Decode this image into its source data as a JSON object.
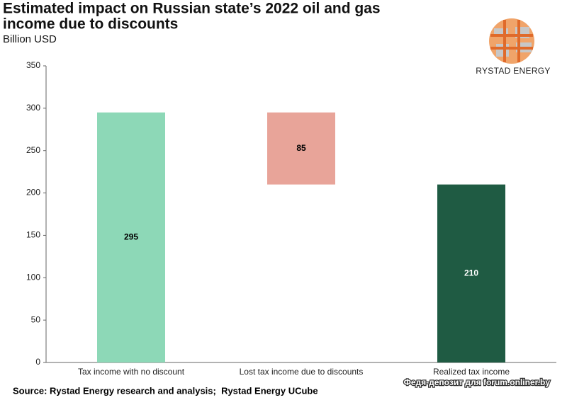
{
  "chart_data": {
    "type": "waterfall",
    "title": [
      "Estimated impact on Russian state’s 2022 oil and gas",
      "income due to discounts"
    ],
    "subtitle": "Billion USD",
    "categories": [
      "Tax income with no discount",
      "Lost tax income due to discounts",
      "Realized tax income"
    ],
    "values": [
      295,
      85,
      210
    ],
    "measures": [
      "absolute",
      "decrease",
      "total"
    ],
    "colors": [
      "#8dd8b7",
      "#e8a499",
      "#1f5b43"
    ],
    "label_colors": [
      "#000000",
      "#000000",
      "#ffffff"
    ],
    "ylim": [
      0,
      350
    ],
    "yticks": [
      0,
      50,
      100,
      150,
      200,
      250,
      300,
      350
    ],
    "grid": false,
    "source": "Source: Rystad Energy research and analysis;  Rystad Energy UCube",
    "logo_text": "RYSTAD ENERGY",
    "watermark": "Федя-депозит для forum.onliner.by"
  }
}
